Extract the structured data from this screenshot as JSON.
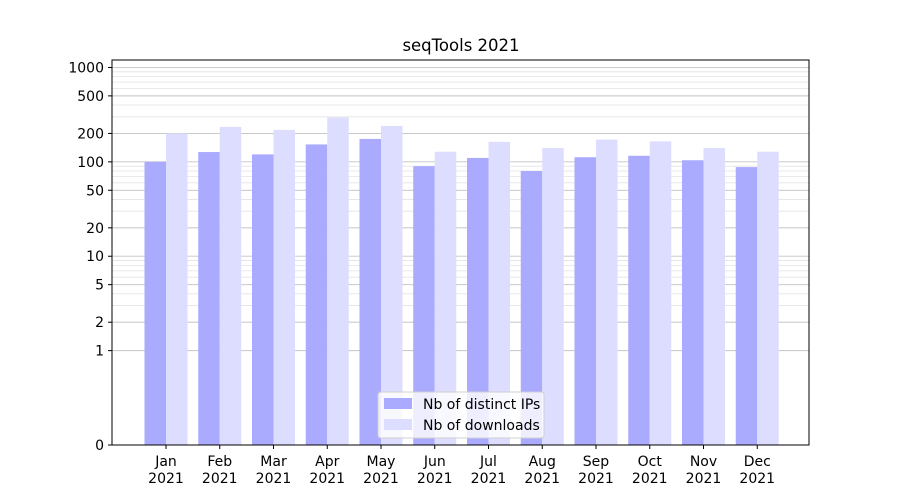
{
  "chart_data": {
    "type": "bar",
    "title": "seqTools 2021",
    "xlabel": "",
    "ylabel": "",
    "y_scale": "symlog",
    "ylim": [
      0,
      1200
    ],
    "y_ticks": [
      0,
      1,
      2,
      5,
      10,
      20,
      50,
      100,
      200,
      500,
      1000
    ],
    "y_tick_labels": [
      "0",
      "1",
      "2",
      "5",
      "10",
      "20",
      "50",
      "100",
      "200",
      "500",
      "1000"
    ],
    "grid": true,
    "legend_position": "lower-center",
    "categories": [
      "Jan\n2021",
      "Feb\n2021",
      "Mar\n2021",
      "Apr\n2021",
      "May\n2021",
      "Jun\n2021",
      "Jul\n2021",
      "Aug\n2021",
      "Sep\n2021",
      "Oct\n2021",
      "Nov\n2021",
      "Dec\n2021"
    ],
    "series": [
      {
        "name": "Nb of distinct IPs",
        "color": "#aaaaff",
        "values": [
          100,
          127,
          120,
          153,
          175,
          90,
          110,
          80,
          112,
          116,
          104,
          88
        ]
      },
      {
        "name": "Nb of downloads",
        "color": "#ddddff",
        "values": [
          200,
          235,
          218,
          295,
          240,
          128,
          163,
          140,
          172,
          165,
          140,
          128
        ]
      }
    ]
  }
}
